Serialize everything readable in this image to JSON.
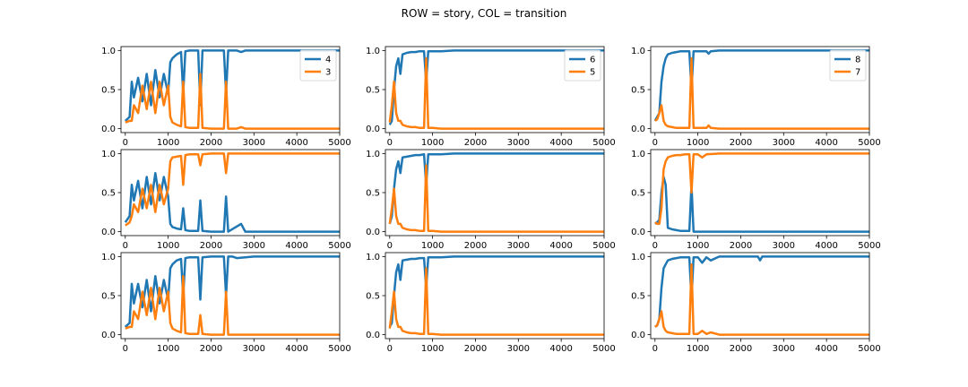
{
  "figure": {
    "suptitle": "ROW = story, COL = transition"
  },
  "colors": {
    "series_a": "#1f77b4",
    "series_b": "#ff7f0e",
    "legend_border": "#cccccc"
  },
  "chart_data": [
    {
      "type": "line",
      "row": 0,
      "col": 0,
      "x": [
        0,
        100,
        150,
        200,
        300,
        400,
        500,
        600,
        700,
        800,
        900,
        1000,
        1050,
        1100,
        1200,
        1300,
        1350,
        1400,
        1500,
        1600,
        1700,
        1750,
        1800,
        2000,
        2200,
        2300,
        2350,
        2400,
        2450,
        2500,
        2600,
        2700,
        2800,
        2900,
        3000,
        3500,
        4000,
        4500,
        5000
      ],
      "series": [
        {
          "name": "4",
          "values": [
            0.1,
            0.15,
            0.6,
            0.4,
            0.65,
            0.35,
            0.7,
            0.3,
            0.75,
            0.4,
            0.7,
            0.45,
            0.85,
            0.9,
            0.95,
            0.98,
            0.45,
            0.99,
            1.0,
            1.0,
            1.0,
            0.3,
            1.0,
            1.0,
            1.0,
            1.0,
            0.45,
            1.0,
            1.0,
            1.0,
            1.0,
            0.98,
            1.0,
            1.0,
            1.0,
            1.0,
            1.0,
            1.0,
            1.0
          ]
        },
        {
          "name": "3",
          "values": [
            0.08,
            0.1,
            0.1,
            0.3,
            0.2,
            0.55,
            0.25,
            0.6,
            0.2,
            0.6,
            0.3,
            0.55,
            0.15,
            0.08,
            0.05,
            0.03,
            0.6,
            0.02,
            0.01,
            0.01,
            0.01,
            0.7,
            0.01,
            0.0,
            0.0,
            0.0,
            0.6,
            0.0,
            0.0,
            0.0,
            0.0,
            0.02,
            0.0,
            0.0,
            0.0,
            0.0,
            0.0,
            0.0,
            0.0
          ]
        }
      ],
      "xlim": [
        -100,
        5000
      ],
      "ylim": [
        -0.05,
        1.05
      ],
      "xticks": [
        0,
        1000,
        2000,
        3000,
        4000,
        5000
      ],
      "yticks": [
        0.0,
        0.5,
        1.0
      ],
      "legend": "top-right"
    },
    {
      "type": "line",
      "row": 0,
      "col": 1,
      "x": [
        0,
        50,
        100,
        150,
        200,
        250,
        300,
        400,
        500,
        600,
        700,
        800,
        850,
        900,
        950,
        1000,
        1200,
        1500,
        2000,
        3000,
        4000,
        5000
      ],
      "series": [
        {
          "name": "6",
          "values": [
            0.05,
            0.1,
            0.5,
            0.8,
            0.9,
            0.7,
            0.95,
            0.97,
            0.98,
            0.98,
            0.99,
            0.99,
            0.6,
            0.99,
            0.99,
            0.99,
            0.99,
            1.0,
            1.0,
            1.0,
            1.0,
            1.0
          ]
        },
        {
          "name": "5",
          "values": [
            0.08,
            0.3,
            0.6,
            0.2,
            0.1,
            0.1,
            0.05,
            0.03,
            0.02,
            0.02,
            0.01,
            0.01,
            0.9,
            0.01,
            0.01,
            0.01,
            0.0,
            0.0,
            0.0,
            0.0,
            0.0,
            0.0
          ]
        }
      ],
      "xlim": [
        -100,
        5000
      ],
      "ylim": [
        -0.05,
        1.05
      ],
      "xticks": [
        0,
        1000,
        2000,
        3000,
        4000,
        5000
      ],
      "yticks": [
        0.0,
        0.5,
        1.0
      ],
      "legend": "top-right"
    },
    {
      "type": "line",
      "row": 0,
      "col": 2,
      "x": [
        0,
        50,
        100,
        150,
        200,
        250,
        300,
        400,
        500,
        600,
        700,
        800,
        850,
        900,
        1000,
        1200,
        1250,
        1300,
        1500,
        2000,
        3000,
        4000,
        5000
      ],
      "series": [
        {
          "name": "8",
          "values": [
            0.1,
            0.15,
            0.2,
            0.6,
            0.8,
            0.9,
            0.95,
            0.97,
            0.98,
            0.99,
            0.99,
            0.99,
            0.5,
            0.99,
            0.99,
            0.99,
            0.96,
            0.99,
            1.0,
            1.0,
            1.0,
            1.0,
            1.0
          ]
        },
        {
          "name": "7",
          "values": [
            0.1,
            0.12,
            0.2,
            0.3,
            0.1,
            0.05,
            0.03,
            0.02,
            0.01,
            0.01,
            0.01,
            0.01,
            0.9,
            0.01,
            0.01,
            0.01,
            0.04,
            0.01,
            0.0,
            0.0,
            0.0,
            0.0,
            0.0
          ]
        }
      ],
      "xlim": [
        -100,
        5000
      ],
      "ylim": [
        -0.05,
        1.05
      ],
      "xticks": [
        0,
        1000,
        2000,
        3000,
        4000,
        5000
      ],
      "yticks": [
        0.0,
        0.5,
        1.0
      ],
      "legend": "top-right"
    },
    {
      "type": "line",
      "row": 1,
      "col": 0,
      "x": [
        0,
        100,
        150,
        200,
        300,
        400,
        500,
        600,
        700,
        800,
        900,
        1000,
        1050,
        1100,
        1200,
        1300,
        1350,
        1400,
        1500,
        1700,
        1750,
        1800,
        2000,
        2300,
        2350,
        2400,
        2700,
        2800,
        2900,
        3000,
        4000,
        5000
      ],
      "series": [
        {
          "name": "",
          "values": [
            0.12,
            0.2,
            0.6,
            0.4,
            0.65,
            0.3,
            0.7,
            0.35,
            0.75,
            0.4,
            0.7,
            0.45,
            0.1,
            0.06,
            0.04,
            0.03,
            0.3,
            0.02,
            0.01,
            0.01,
            0.4,
            0.01,
            0.0,
            0.0,
            0.45,
            0.0,
            0.1,
            0.0,
            0.0,
            0.0,
            0.0,
            0.0
          ]
        },
        {
          "name": "",
          "values": [
            0.08,
            0.12,
            0.2,
            0.35,
            0.25,
            0.55,
            0.3,
            0.6,
            0.25,
            0.6,
            0.35,
            0.55,
            0.9,
            0.95,
            0.96,
            0.97,
            0.6,
            0.98,
            0.99,
            0.99,
            0.85,
            0.99,
            1.0,
            1.0,
            0.75,
            1.0,
            1.0,
            1.0,
            1.0,
            1.0,
            1.0,
            1.0
          ]
        }
      ],
      "xlim": [
        -100,
        5000
      ],
      "ylim": [
        -0.05,
        1.05
      ],
      "xticks": [
        0,
        1000,
        2000,
        3000,
        4000,
        5000
      ],
      "yticks": [
        0.0,
        0.5,
        1.0
      ],
      "legend": "none"
    },
    {
      "type": "line",
      "row": 1,
      "col": 1,
      "x": [
        0,
        50,
        100,
        150,
        200,
        250,
        300,
        400,
        500,
        600,
        700,
        800,
        850,
        900,
        950,
        1000,
        1200,
        1500,
        2000,
        3000,
        4000,
        5000
      ],
      "series": [
        {
          "name": "",
          "values": [
            0.1,
            0.2,
            0.55,
            0.8,
            0.9,
            0.75,
            0.95,
            0.96,
            0.97,
            0.98,
            0.98,
            0.99,
            0.6,
            0.99,
            0.99,
            0.99,
            0.99,
            1.0,
            1.0,
            1.0,
            1.0,
            1.0
          ]
        },
        {
          "name": "",
          "values": [
            0.1,
            0.3,
            0.55,
            0.2,
            0.1,
            0.1,
            0.05,
            0.03,
            0.02,
            0.02,
            0.01,
            0.01,
            0.85,
            0.01,
            0.01,
            0.01,
            0.0,
            0.0,
            0.0,
            0.0,
            0.0,
            0.0
          ]
        }
      ],
      "xlim": [
        -100,
        5000
      ],
      "ylim": [
        -0.05,
        1.05
      ],
      "xticks": [
        0,
        1000,
        2000,
        3000,
        4000,
        5000
      ],
      "yticks": [
        0.0,
        0.5,
        1.0
      ],
      "legend": "none"
    },
    {
      "type": "line",
      "row": 1,
      "col": 2,
      "x": [
        0,
        50,
        100,
        150,
        200,
        250,
        300,
        400,
        500,
        600,
        700,
        800,
        850,
        900,
        1000,
        1100,
        1200,
        1500,
        2000,
        3000,
        4000,
        5000
      ],
      "series": [
        {
          "name": "",
          "values": [
            0.1,
            0.12,
            0.15,
            0.5,
            0.7,
            0.6,
            0.05,
            0.03,
            0.02,
            0.01,
            0.01,
            0.01,
            0.6,
            0.0,
            0.0,
            0.0,
            0.0,
            0.0,
            0.0,
            0.0,
            0.0,
            0.0
          ]
        },
        {
          "name": "",
          "values": [
            0.12,
            0.1,
            0.1,
            0.3,
            0.8,
            0.9,
            0.95,
            0.97,
            0.98,
            0.98,
            0.99,
            0.99,
            0.5,
            0.99,
            0.99,
            0.95,
            0.99,
            1.0,
            1.0,
            1.0,
            1.0,
            1.0
          ]
        }
      ],
      "xlim": [
        -100,
        5000
      ],
      "ylim": [
        -0.05,
        1.05
      ],
      "xticks": [
        0,
        1000,
        2000,
        3000,
        4000,
        5000
      ],
      "yticks": [
        0.0,
        0.5,
        1.0
      ],
      "legend": "none"
    },
    {
      "type": "line",
      "row": 2,
      "col": 0,
      "x": [
        0,
        100,
        150,
        200,
        300,
        400,
        500,
        600,
        700,
        800,
        900,
        1000,
        1050,
        1100,
        1200,
        1300,
        1350,
        1400,
        1500,
        1700,
        1750,
        1800,
        2000,
        2300,
        2350,
        2400,
        2500,
        2600,
        3000,
        4000,
        5000
      ],
      "series": [
        {
          "name": "",
          "values": [
            0.1,
            0.15,
            0.65,
            0.4,
            0.65,
            0.35,
            0.7,
            0.3,
            0.75,
            0.4,
            0.7,
            0.45,
            0.85,
            0.9,
            0.95,
            0.97,
            0.5,
            0.98,
            0.99,
            0.99,
            0.45,
            0.99,
            1.0,
            1.0,
            0.5,
            1.0,
            1.0,
            0.98,
            1.0,
            1.0,
            1.0
          ]
        },
        {
          "name": "",
          "values": [
            0.08,
            0.1,
            0.1,
            0.3,
            0.2,
            0.55,
            0.25,
            0.6,
            0.2,
            0.6,
            0.3,
            0.55,
            0.15,
            0.08,
            0.05,
            0.03,
            0.75,
            0.02,
            0.01,
            0.01,
            0.25,
            0.01,
            0.0,
            0.0,
            0.55,
            0.0,
            0.0,
            0.0,
            0.0,
            0.0,
            0.0
          ]
        }
      ],
      "xlim": [
        -100,
        5000
      ],
      "ylim": [
        -0.05,
        1.05
      ],
      "xticks": [
        0,
        1000,
        2000,
        3000,
        4000,
        5000
      ],
      "yticks": [
        0.0,
        0.5,
        1.0
      ],
      "legend": "none"
    },
    {
      "type": "line",
      "row": 2,
      "col": 1,
      "x": [
        0,
        50,
        100,
        150,
        200,
        250,
        300,
        400,
        500,
        600,
        700,
        800,
        850,
        900,
        950,
        1000,
        1200,
        1500,
        2000,
        3000,
        4000,
        5000
      ],
      "series": [
        {
          "name": "",
          "values": [
            0.1,
            0.15,
            0.5,
            0.8,
            0.9,
            0.7,
            0.95,
            0.96,
            0.97,
            0.97,
            0.98,
            0.98,
            0.6,
            0.99,
            0.99,
            0.99,
            0.99,
            1.0,
            1.0,
            1.0,
            1.0,
            1.0
          ]
        },
        {
          "name": "",
          "values": [
            0.08,
            0.3,
            0.55,
            0.2,
            0.1,
            0.1,
            0.05,
            0.03,
            0.02,
            0.02,
            0.01,
            0.01,
            0.85,
            0.01,
            0.01,
            0.01,
            0.0,
            0.0,
            0.0,
            0.0,
            0.0,
            0.0
          ]
        }
      ],
      "xlim": [
        -100,
        5000
      ],
      "ylim": [
        -0.05,
        1.05
      ],
      "xticks": [
        0,
        1000,
        2000,
        3000,
        4000,
        5000
      ],
      "yticks": [
        0.0,
        0.5,
        1.0
      ],
      "legend": "none"
    },
    {
      "type": "line",
      "row": 2,
      "col": 2,
      "x": [
        0,
        50,
        100,
        150,
        200,
        250,
        300,
        400,
        500,
        600,
        700,
        800,
        850,
        900,
        1000,
        1100,
        1200,
        1300,
        1500,
        2000,
        2400,
        2450,
        2500,
        3000,
        4000,
        5000
      ],
      "series": [
        {
          "name": "",
          "values": [
            0.1,
            0.12,
            0.2,
            0.6,
            0.85,
            0.9,
            0.95,
            0.97,
            0.98,
            0.99,
            0.99,
            0.99,
            0.45,
            0.99,
            0.99,
            0.92,
            0.99,
            0.95,
            1.0,
            1.0,
            1.0,
            0.95,
            1.0,
            1.0,
            1.0,
            1.0
          ]
        },
        {
          "name": "",
          "values": [
            0.1,
            0.12,
            0.2,
            0.3,
            0.1,
            0.05,
            0.03,
            0.02,
            0.01,
            0.01,
            0.01,
            0.01,
            0.9,
            0.01,
            0.01,
            0.05,
            0.01,
            0.03,
            0.0,
            0.0,
            0.0,
            0.0,
            0.0,
            0.0,
            0.0,
            0.0
          ]
        }
      ],
      "xlim": [
        -100,
        5000
      ],
      "ylim": [
        -0.05,
        1.05
      ],
      "xticks": [
        0,
        1000,
        2000,
        3000,
        4000,
        5000
      ],
      "yticks": [
        0.0,
        0.5,
        1.0
      ],
      "legend": "none"
    }
  ]
}
